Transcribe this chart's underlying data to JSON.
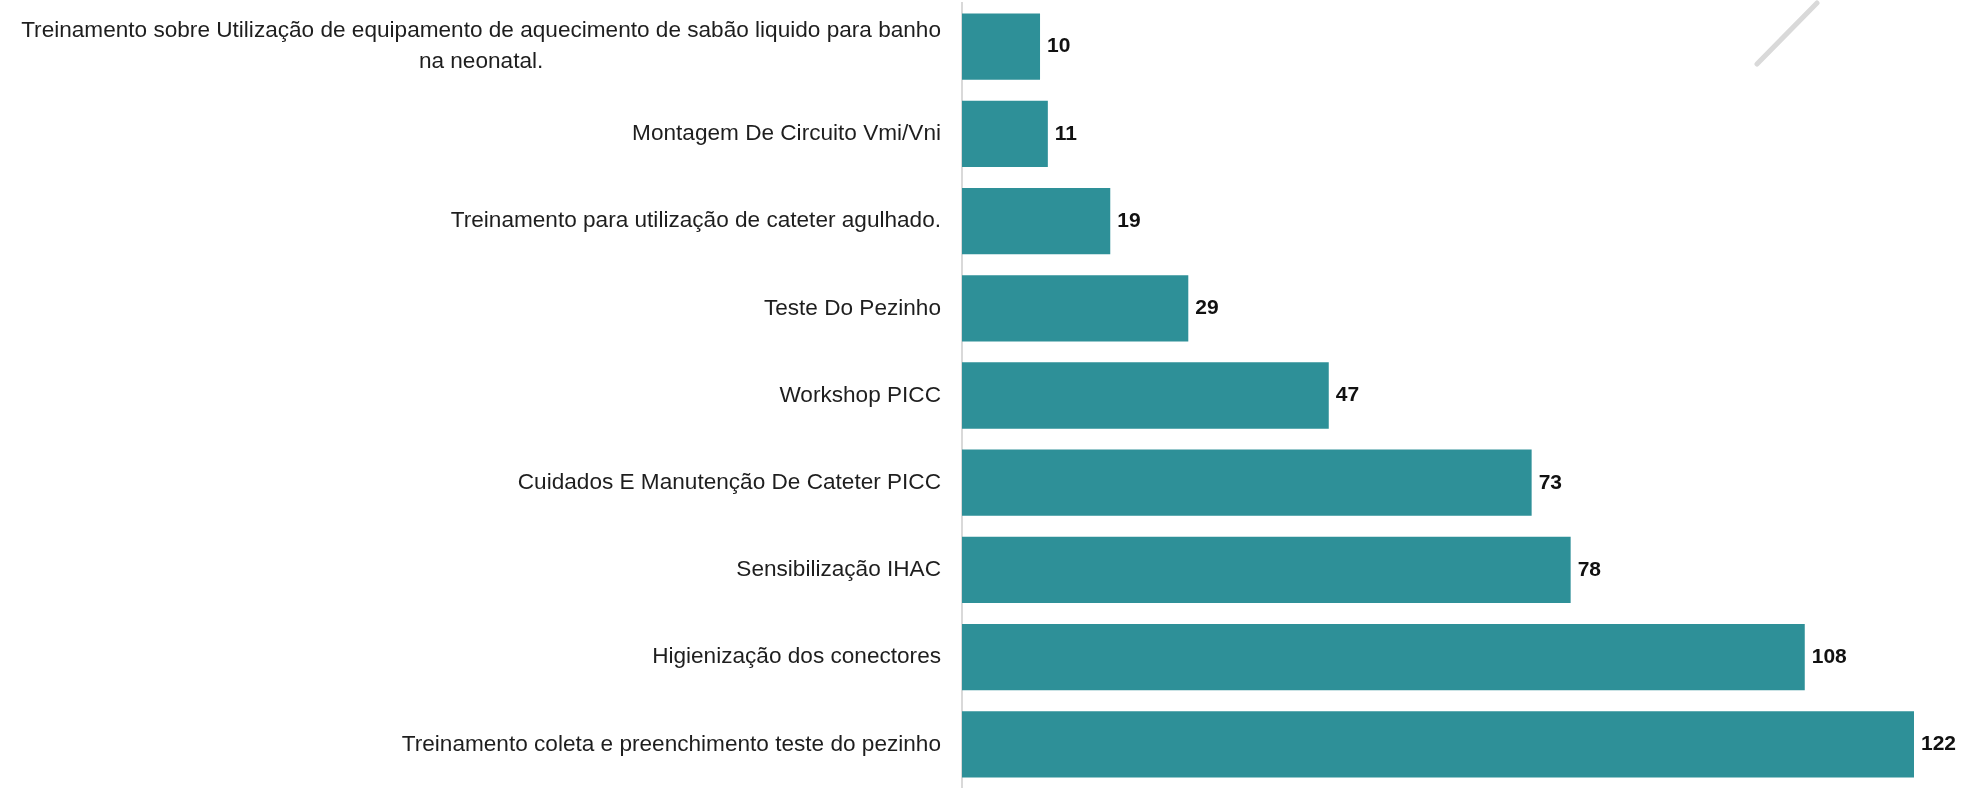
{
  "chart_data": {
    "type": "bar",
    "orientation": "horizontal",
    "categories": [
      "Treinamento sobre Utilização de equipamento de aquecimento de sabão liquido para banho na neonatal.",
      "Montagem De Circuito Vmi/Vni",
      "Treinamento para utilização de cateter agulhado.",
      "Teste Do Pezinho",
      "Workshop PICC",
      "Cuidados E Manutenção De Cateter PICC",
      "Sensibilização IHAC",
      "Higienização dos conectores",
      "Treinamento coleta e preenchimento teste do pezinho"
    ],
    "values": [
      10,
      11,
      19,
      29,
      47,
      73,
      78,
      108,
      122
    ],
    "color": "#2e9098",
    "data_labels": true
  }
}
